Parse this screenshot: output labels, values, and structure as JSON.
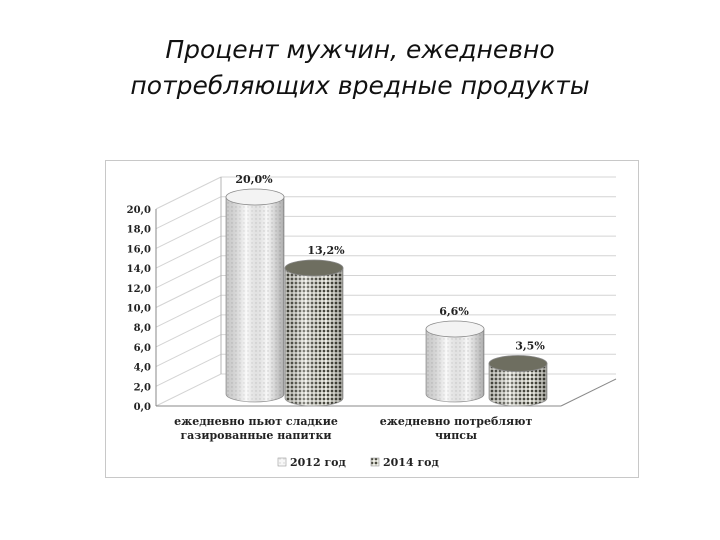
{
  "slide": {
    "title_line1": "Процент  мужчин, ежедневно",
    "title_line2": "потребляющих вредные продукты"
  },
  "chart_data": {
    "type": "bar",
    "style": "3d-cylinder",
    "categories": [
      [
        "ежедневно пьют сладкие",
        "газированные напитки"
      ],
      [
        "ежедневно потребляют",
        "чипсы"
      ]
    ],
    "series": [
      {
        "name": "2012 год",
        "values": [
          20.0,
          6.6
        ],
        "labels": [
          "20,0%",
          "6,6%"
        ],
        "pattern": "light-dots"
      },
      {
        "name": "2014 год",
        "values": [
          13.2,
          3.5
        ],
        "labels": [
          "13,2%",
          "3,5%"
        ],
        "pattern": "dark-dots"
      }
    ],
    "y_ticks": [
      "0,0",
      "2,0",
      "4,0",
      "6,0",
      "8,0",
      "10,0",
      "12,0",
      "14,0",
      "16,0",
      "18,0",
      "20,0"
    ],
    "ylim": [
      0,
      20
    ],
    "grid": true,
    "legend_position": "bottom"
  }
}
